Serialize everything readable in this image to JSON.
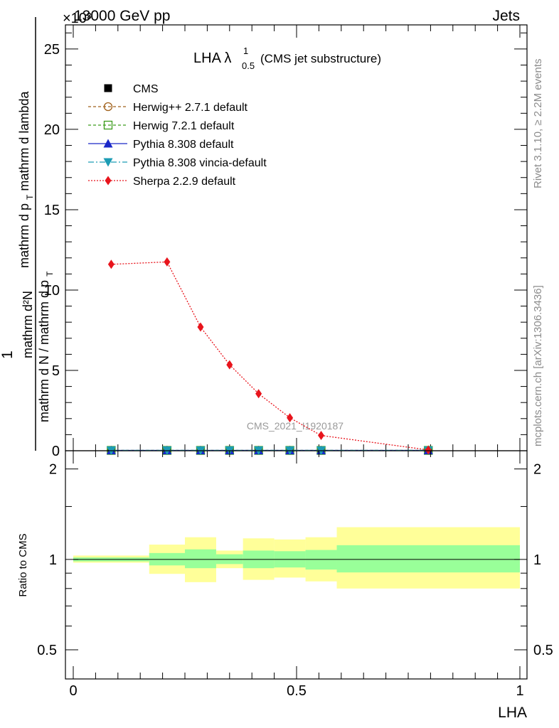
{
  "header": {
    "left": "13000 GeV pp",
    "right": "Jets",
    "exponent": "×10³"
  },
  "side_labels": {
    "rivet": "Rivet 3.1.10, ≥ 2.2M events",
    "mcplots": "mcplots.cern.ch [arXiv:1306.3436]"
  },
  "chart_data": [
    {
      "type": "line",
      "title": "LHA λ",
      "title_sup": "1",
      "title_sub": "0.5",
      "subtitle": "(CMS jet substructure)",
      "watermark": "CMS_2021_I1920187",
      "ylabel": {
        "numerator_one": "1",
        "numerator": "mathrm d²N",
        "numerator_mid": "mathrm d p",
        "numerator_mid_sub": "T",
        "numerator_end": " mathrm d lambda",
        "denominator": "mathrm d N / mathrm d p",
        "denominator_sub": "T"
      },
      "xlim": [
        0,
        1
      ],
      "ylim": [
        0,
        26.5
      ],
      "yticks": [
        0,
        5,
        10,
        15,
        20,
        25
      ],
      "ytick_labels": [
        "0",
        "5",
        "10",
        "15",
        "20",
        "25"
      ],
      "legend_position": "top-left",
      "series": [
        {
          "name": "CMS",
          "color": "#000000",
          "marker": "square",
          "x": [
            0.085,
            0.21,
            0.285,
            0.35,
            0.415,
            0.485,
            0.555,
            0.795
          ],
          "y": [
            0.02,
            0.02,
            0.02,
            0.02,
            0.02,
            0.02,
            0.02,
            0.02
          ]
        },
        {
          "name": "Herwig++ 2.7.1 default",
          "color": "#a0601a",
          "marker": "circle-open",
          "dash": "4,3",
          "x": [
            0.085,
            0.21,
            0.285,
            0.35,
            0.415,
            0.485,
            0.555,
            0.795
          ],
          "y": [
            0.02,
            0.02,
            0.02,
            0.02,
            0.02,
            0.02,
            0.02,
            0.02
          ]
        },
        {
          "name": "Herwig 7.2.1 default",
          "color": "#3c9c1c",
          "marker": "square-open",
          "dash": "4,3",
          "x": [
            0.085,
            0.21,
            0.285,
            0.35,
            0.415,
            0.485,
            0.555,
            0.795
          ],
          "y": [
            0.02,
            0.02,
            0.02,
            0.02,
            0.02,
            0.02,
            0.02,
            0.02
          ]
        },
        {
          "name": "Pythia 8.308 default",
          "color": "#1a28c8",
          "marker": "triangle-up",
          "dash": "",
          "x": [
            0.085,
            0.21,
            0.285,
            0.35,
            0.415,
            0.485,
            0.555,
            0.795
          ],
          "y": [
            0.02,
            0.02,
            0.02,
            0.02,
            0.02,
            0.02,
            0.02,
            0.02
          ]
        },
        {
          "name": "Pythia 8.308 vincia-default",
          "color": "#1c9cb4",
          "marker": "triangle-down",
          "dash": "8,3,2,3",
          "x": [
            0.085,
            0.21,
            0.285,
            0.35,
            0.415,
            0.485,
            0.555,
            0.795
          ],
          "y": [
            0.02,
            0.02,
            0.02,
            0.02,
            0.02,
            0.02,
            0.02,
            0.02
          ]
        },
        {
          "name": "Sherpa 2.2.9 default",
          "color": "#e8141c",
          "marker": "diamond",
          "dash": "2,2",
          "x": [
            0.085,
            0.21,
            0.285,
            0.35,
            0.415,
            0.485,
            0.555,
            0.795
          ],
          "y": [
            11.6,
            11.75,
            7.7,
            5.35,
            3.55,
            2.05,
            0.95,
            0.05
          ]
        }
      ]
    },
    {
      "type": "area",
      "ylabel": "Ratio to CMS",
      "xlabel": "LHA",
      "xlim": [
        0,
        1
      ],
      "ylim": [
        0.4,
        2.3
      ],
      "yticks": [
        0.5,
        1,
        2
      ],
      "ytick_labels": [
        "0.5",
        "1",
        "2"
      ],
      "xticks": [
        0,
        0.5,
        1
      ],
      "xtick_labels": [
        "0",
        "0.5",
        "1"
      ],
      "bin_edges": [
        0,
        0.17,
        0.25,
        0.32,
        0.38,
        0.45,
        0.52,
        0.59,
        1.0
      ],
      "inner_band": {
        "color": "#99ff99",
        "low": [
          0.985,
          0.955,
          0.935,
          0.965,
          0.935,
          0.94,
          0.925,
          0.905
        ],
        "high": [
          1.015,
          1.05,
          1.08,
          1.04,
          1.07,
          1.065,
          1.075,
          1.115
        ]
      },
      "outer_band": {
        "color": "#ffff99",
        "low": [
          0.975,
          0.895,
          0.84,
          0.935,
          0.855,
          0.87,
          0.845,
          0.8
        ],
        "high": [
          1.03,
          1.12,
          1.185,
          1.07,
          1.175,
          1.165,
          1.185,
          1.28
        ]
      },
      "reference": 1
    }
  ]
}
